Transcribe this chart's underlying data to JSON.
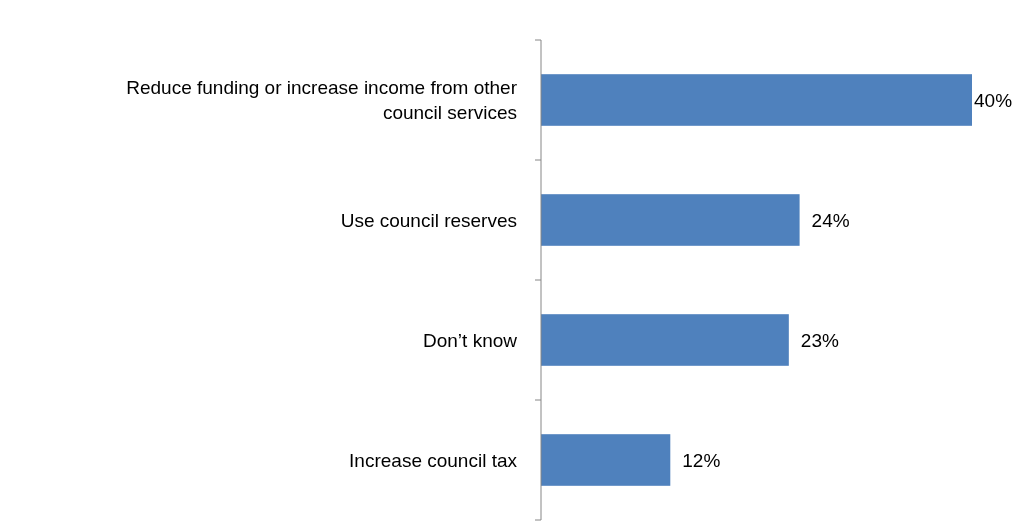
{
  "chart_data": {
    "type": "bar",
    "orientation": "horizontal",
    "categories": [
      "Reduce funding or increase income from other council services",
      "Use council reserves",
      "Don’t know",
      "Increase council tax"
    ],
    "values": [
      40,
      24,
      23,
      12
    ],
    "value_labels": [
      "40%",
      "24%",
      "23%",
      "12%"
    ],
    "color": "#4f81bd"
  }
}
